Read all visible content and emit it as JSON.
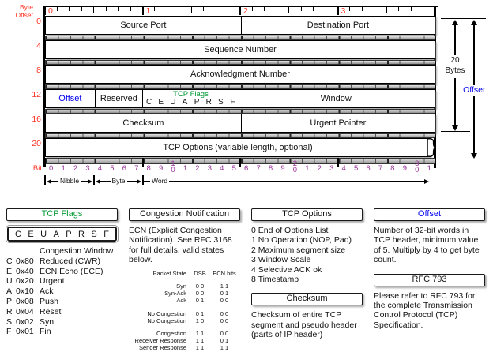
{
  "colors": {
    "red": "#ff3322",
    "purple": "#993399",
    "blue": "#0000ee",
    "green": "#009933"
  },
  "diagram": {
    "byte_offset_label_line1": "Byte",
    "byte_offset_label_line2": "Offset",
    "top_byte_numbers": [
      "0",
      "1",
      "2",
      "3"
    ],
    "row_byte_offsets": [
      "0",
      "4",
      "8",
      "12",
      "16",
      "20"
    ],
    "bit_axis_label": "Bit",
    "bit_count": 32,
    "rows": [
      {
        "name": "row-0",
        "fields": [
          {
            "label": "Source Port",
            "bits": 16
          },
          {
            "label": "Destination Port",
            "bits": 16
          }
        ]
      },
      {
        "name": "row-4",
        "fields": [
          {
            "label": "Sequence Number",
            "bits": 32
          }
        ]
      },
      {
        "name": "row-8",
        "fields": [
          {
            "label": "Acknowledgment Number",
            "bits": 32
          }
        ]
      },
      {
        "name": "row-12",
        "fields": [
          {
            "label": "Offset",
            "bits": 4,
            "color": "blue"
          },
          {
            "label": "Reserved",
            "bits": 4
          },
          {
            "label": "TCP Flags",
            "bits": 8,
            "color": "green",
            "flag_letters": [
              "C",
              "E",
              "U",
              "A",
              "P",
              "R",
              "S",
              "F"
            ]
          },
          {
            "label": "Window",
            "bits": 16
          }
        ]
      },
      {
        "name": "row-16",
        "fields": [
          {
            "label": "Checksum",
            "bits": 16
          },
          {
            "label": "Urgent Pointer",
            "bits": 16
          }
        ]
      },
      {
        "name": "row-20",
        "fields": [
          {
            "label": "TCP Options (variable length, optional)",
            "bits": 32,
            "wavy": true
          }
        ]
      }
    ],
    "scale": {
      "nibble": "Nibble",
      "byte": "Byte",
      "word": "Word"
    },
    "annotations": {
      "total_line1": "20",
      "total_line2": "Bytes",
      "offset": "Offset"
    }
  },
  "panels": {
    "tcp_flags": {
      "title": "TCP Flags",
      "flag_letters": [
        "C",
        "E",
        "U",
        "A",
        "P",
        "R",
        "S",
        "F"
      ],
      "lines": [
        {
          "flag": "",
          "hex": "",
          "desc": "Congestion Window"
        },
        {
          "flag": "C",
          "hex": "0x80",
          "desc": "Reduced (CWR)"
        },
        {
          "flag": "E",
          "hex": "0x40",
          "desc": "ECN Echo (ECE)"
        },
        {
          "flag": "U",
          "hex": "0x20",
          "desc": "Urgent"
        },
        {
          "flag": "A",
          "hex": "0x10",
          "desc": "Ack"
        },
        {
          "flag": "P",
          "hex": "0x08",
          "desc": "Push"
        },
        {
          "flag": "R",
          "hex": "0x04",
          "desc": "Reset"
        },
        {
          "flag": "S",
          "hex": "0x02",
          "desc": "Syn"
        },
        {
          "flag": "F",
          "hex": "0x01",
          "desc": "Fin"
        }
      ]
    },
    "congestion": {
      "title": "Congestion Notification",
      "paragraph": "ECN (Explicit Congestion Notification).  See RFC 3168 for full details, valid states below.",
      "table_headers": [
        "Packet State",
        "DSB",
        "ECN bits"
      ],
      "table_groups": [
        [
          {
            "state": "Syn",
            "dsb": "0 0",
            "ecn": "1 1"
          },
          {
            "state": "Syn-Ack",
            "dsb": "0 0",
            "ecn": "0 1"
          },
          {
            "state": "Ack",
            "dsb": "0 1",
            "ecn": "0 0"
          }
        ],
        [
          {
            "state": "No Congestion",
            "dsb": "0 1",
            "ecn": "0 0"
          },
          {
            "state": "No Congestion",
            "dsb": "1 0",
            "ecn": "0 0"
          }
        ],
        [
          {
            "state": "Congestion",
            "dsb": "1 1",
            "ecn": "0 0"
          },
          {
            "state": "Receiver Response",
            "dsb": "1 1",
            "ecn": "0 1"
          },
          {
            "state": "Sender Response",
            "dsb": "1 1",
            "ecn": "1 1"
          }
        ]
      ]
    },
    "tcp_options": {
      "title": "TCP Options",
      "lines": [
        "0 End of Options List",
        "1 No Operation (NOP, Pad)",
        "2 Maximum segment size",
        "3 Window Scale",
        "4 Selective ACK ok",
        "8 Timestamp"
      ]
    },
    "checksum": {
      "title": "Checksum",
      "paragraph": "Checksum of entire TCP segment and pseudo header (parts of IP header)"
    },
    "offset": {
      "title": "Offset",
      "paragraph": "Number of 32-bit words in TCP header, minimum value of 5.  Multiply by 4 to get byte count."
    },
    "rfc": {
      "title": "RFC 793",
      "paragraph": "Please refer to RFC 793 for the complete Transmission Control Protocol (TCP) Specification."
    }
  }
}
